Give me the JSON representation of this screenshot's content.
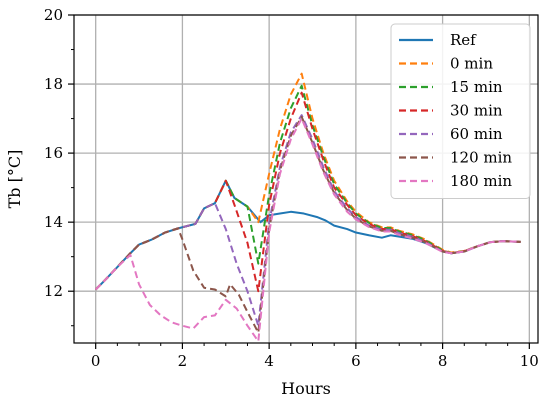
{
  "chart_data": {
    "type": "line",
    "xlabel": "Hours",
    "ylabel": "Tb [°C]",
    "xlim": [
      -0.5,
      10.2
    ],
    "ylim": [
      10.5,
      20
    ],
    "xticks": [
      0,
      2,
      4,
      6,
      8,
      10
    ],
    "yticks": [
      12,
      14,
      16,
      18,
      20
    ],
    "grid": true,
    "legend_position": "top-right",
    "series": [
      {
        "name": "Ref",
        "color": "#1f77b4",
        "dash": "solid",
        "points": [
          [
            0,
            12.05
          ],
          [
            0.2,
            12.3
          ],
          [
            0.5,
            12.7
          ],
          [
            0.8,
            13.1
          ],
          [
            1,
            13.35
          ],
          [
            1.3,
            13.5
          ],
          [
            1.6,
            13.7
          ],
          [
            1.9,
            13.82
          ],
          [
            2.3,
            13.95
          ],
          [
            2.5,
            14.4
          ],
          [
            2.75,
            14.55
          ],
          [
            3,
            15.2
          ],
          [
            3.2,
            14.7
          ],
          [
            3.5,
            14.45
          ],
          [
            3.8,
            14.0
          ],
          [
            4.0,
            14.2
          ],
          [
            4.25,
            14.25
          ],
          [
            4.5,
            14.3
          ],
          [
            4.8,
            14.25
          ],
          [
            5.1,
            14.15
          ],
          [
            5.3,
            14.05
          ],
          [
            5.5,
            13.9
          ],
          [
            5.8,
            13.8
          ],
          [
            6.0,
            13.7
          ],
          [
            6.3,
            13.62
          ],
          [
            6.6,
            13.55
          ],
          [
            6.8,
            13.62
          ],
          [
            7.0,
            13.58
          ],
          [
            7.3,
            13.52
          ],
          [
            7.6,
            13.4
          ],
          [
            8.0,
            13.15
          ],
          [
            8.2,
            13.1
          ],
          [
            8.5,
            13.15
          ],
          [
            8.8,
            13.3
          ],
          [
            9.1,
            13.42
          ],
          [
            9.4,
            13.45
          ],
          [
            9.8,
            13.43
          ]
        ]
      },
      {
        "name": "0 min",
        "color": "#ff7f0e",
        "dash": "dashed",
        "points": [
          [
            0,
            12.05
          ],
          [
            0.2,
            12.3
          ],
          [
            0.5,
            12.7
          ],
          [
            0.8,
            13.1
          ],
          [
            1,
            13.35
          ],
          [
            1.3,
            13.5
          ],
          [
            1.6,
            13.7
          ],
          [
            1.9,
            13.82
          ],
          [
            2.3,
            13.95
          ],
          [
            2.5,
            14.4
          ],
          [
            2.75,
            14.55
          ],
          [
            3,
            15.2
          ],
          [
            3.2,
            14.7
          ],
          [
            3.5,
            14.45
          ],
          [
            3.75,
            14.0
          ],
          [
            4.0,
            15.4
          ],
          [
            4.25,
            16.7
          ],
          [
            4.5,
            17.7
          ],
          [
            4.75,
            18.3
          ],
          [
            5.0,
            17.0
          ],
          [
            5.25,
            16.0
          ],
          [
            5.5,
            15.2
          ],
          [
            5.8,
            14.6
          ],
          [
            6.0,
            14.3
          ],
          [
            6.3,
            14.0
          ],
          [
            6.6,
            13.85
          ],
          [
            6.8,
            13.85
          ],
          [
            7.0,
            13.75
          ],
          [
            7.3,
            13.65
          ],
          [
            7.6,
            13.5
          ],
          [
            8.0,
            13.2
          ],
          [
            8.2,
            13.12
          ],
          [
            8.5,
            13.17
          ],
          [
            8.8,
            13.3
          ],
          [
            9.1,
            13.42
          ],
          [
            9.4,
            13.45
          ],
          [
            9.8,
            13.43
          ]
        ]
      },
      {
        "name": "15 min",
        "color": "#2ca02c",
        "dash": "dashed",
        "points": [
          [
            0,
            12.05
          ],
          [
            0.2,
            12.3
          ],
          [
            0.5,
            12.7
          ],
          [
            0.8,
            13.1
          ],
          [
            1,
            13.35
          ],
          [
            1.3,
            13.5
          ],
          [
            1.6,
            13.7
          ],
          [
            1.9,
            13.82
          ],
          [
            2.3,
            13.95
          ],
          [
            2.5,
            14.4
          ],
          [
            2.75,
            14.55
          ],
          [
            3,
            15.2
          ],
          [
            3.2,
            14.7
          ],
          [
            3.5,
            14.45
          ],
          [
            3.75,
            12.8
          ],
          [
            4.0,
            14.8
          ],
          [
            4.25,
            16.3
          ],
          [
            4.5,
            17.3
          ],
          [
            4.75,
            17.95
          ],
          [
            5.0,
            16.8
          ],
          [
            5.25,
            15.9
          ],
          [
            5.5,
            15.1
          ],
          [
            5.8,
            14.55
          ],
          [
            6.0,
            14.25
          ],
          [
            6.3,
            13.98
          ],
          [
            6.6,
            13.83
          ],
          [
            6.8,
            13.83
          ],
          [
            7.0,
            13.73
          ],
          [
            7.3,
            13.63
          ],
          [
            7.6,
            13.48
          ],
          [
            8.0,
            13.18
          ],
          [
            8.2,
            13.1
          ],
          [
            8.5,
            13.16
          ],
          [
            8.8,
            13.3
          ],
          [
            9.1,
            13.42
          ],
          [
            9.4,
            13.45
          ],
          [
            9.8,
            13.43
          ]
        ]
      },
      {
        "name": "30 min",
        "color": "#d62728",
        "dash": "dashed",
        "points": [
          [
            0,
            12.05
          ],
          [
            0.2,
            12.3
          ],
          [
            0.5,
            12.7
          ],
          [
            0.8,
            13.1
          ],
          [
            1,
            13.35
          ],
          [
            1.3,
            13.5
          ],
          [
            1.6,
            13.7
          ],
          [
            1.9,
            13.82
          ],
          [
            2.3,
            13.95
          ],
          [
            2.5,
            14.4
          ],
          [
            2.75,
            14.55
          ],
          [
            3,
            15.2
          ],
          [
            3.2,
            14.5
          ],
          [
            3.5,
            13.4
          ],
          [
            3.75,
            12.0
          ],
          [
            4.0,
            14.5
          ],
          [
            4.25,
            16.0
          ],
          [
            4.5,
            17.0
          ],
          [
            4.75,
            17.75
          ],
          [
            5.0,
            16.7
          ],
          [
            5.25,
            15.8
          ],
          [
            5.5,
            15.0
          ],
          [
            5.8,
            14.5
          ],
          [
            6.0,
            14.2
          ],
          [
            6.3,
            13.95
          ],
          [
            6.6,
            13.8
          ],
          [
            6.8,
            13.8
          ],
          [
            7.0,
            13.7
          ],
          [
            7.3,
            13.6
          ],
          [
            7.6,
            13.45
          ],
          [
            8.0,
            13.17
          ],
          [
            8.2,
            13.1
          ],
          [
            8.5,
            13.16
          ],
          [
            8.8,
            13.3
          ],
          [
            9.1,
            13.42
          ],
          [
            9.4,
            13.45
          ],
          [
            9.8,
            13.43
          ]
        ]
      },
      {
        "name": "60 min",
        "color": "#9467bd",
        "dash": "dashed",
        "points": [
          [
            0,
            12.05
          ],
          [
            0.2,
            12.3
          ],
          [
            0.5,
            12.7
          ],
          [
            0.8,
            13.1
          ],
          [
            1,
            13.35
          ],
          [
            1.3,
            13.5
          ],
          [
            1.6,
            13.7
          ],
          [
            1.9,
            13.82
          ],
          [
            2.3,
            13.95
          ],
          [
            2.5,
            14.4
          ],
          [
            2.75,
            14.55
          ],
          [
            3.0,
            13.8
          ],
          [
            3.25,
            12.8
          ],
          [
            3.5,
            12.0
          ],
          [
            3.75,
            11.0
          ],
          [
            4.0,
            14.0
          ],
          [
            4.25,
            15.6
          ],
          [
            4.5,
            16.6
          ],
          [
            4.75,
            17.1
          ],
          [
            5.0,
            16.4
          ],
          [
            5.25,
            15.6
          ],
          [
            5.5,
            14.9
          ],
          [
            5.8,
            14.4
          ],
          [
            6.0,
            14.15
          ],
          [
            6.3,
            13.9
          ],
          [
            6.6,
            13.78
          ],
          [
            6.8,
            13.78
          ],
          [
            7.0,
            13.68
          ],
          [
            7.3,
            13.58
          ],
          [
            7.6,
            13.43
          ],
          [
            8.0,
            13.15
          ],
          [
            8.2,
            13.1
          ],
          [
            8.5,
            13.15
          ],
          [
            8.8,
            13.3
          ],
          [
            9.1,
            13.42
          ],
          [
            9.4,
            13.45
          ],
          [
            9.8,
            13.43
          ]
        ]
      },
      {
        "name": "120 min",
        "color": "#8c564b",
        "dash": "dashed",
        "points": [
          [
            0,
            12.05
          ],
          [
            0.2,
            12.3
          ],
          [
            0.5,
            12.7
          ],
          [
            0.8,
            13.1
          ],
          [
            1,
            13.35
          ],
          [
            1.3,
            13.5
          ],
          [
            1.6,
            13.7
          ],
          [
            1.9,
            13.82
          ],
          [
            2.0,
            13.5
          ],
          [
            2.25,
            12.6
          ],
          [
            2.5,
            12.1
          ],
          [
            2.75,
            12.05
          ],
          [
            3.0,
            11.85
          ],
          [
            3.1,
            12.2
          ],
          [
            3.3,
            11.9
          ],
          [
            3.5,
            11.4
          ],
          [
            3.75,
            10.8
          ],
          [
            4.0,
            13.8
          ],
          [
            4.25,
            15.5
          ],
          [
            4.5,
            16.5
          ],
          [
            4.75,
            17.05
          ],
          [
            5.0,
            16.3
          ],
          [
            5.25,
            15.5
          ],
          [
            5.5,
            14.85
          ],
          [
            5.8,
            14.35
          ],
          [
            6.0,
            14.1
          ],
          [
            6.3,
            13.88
          ],
          [
            6.6,
            13.75
          ],
          [
            6.8,
            13.75
          ],
          [
            7.0,
            13.65
          ],
          [
            7.3,
            13.55
          ],
          [
            7.6,
            13.42
          ],
          [
            8.0,
            13.15
          ],
          [
            8.2,
            13.1
          ],
          [
            8.5,
            13.15
          ],
          [
            8.8,
            13.3
          ],
          [
            9.1,
            13.42
          ],
          [
            9.4,
            13.45
          ],
          [
            9.8,
            13.43
          ]
        ]
      },
      {
        "name": "180 min",
        "color": "#e377c2",
        "dash": "dashed",
        "points": [
          [
            0,
            12.05
          ],
          [
            0.2,
            12.3
          ],
          [
            0.5,
            12.7
          ],
          [
            0.8,
            13.05
          ],
          [
            1,
            12.2
          ],
          [
            1.25,
            11.6
          ],
          [
            1.5,
            11.3
          ],
          [
            1.75,
            11.1
          ],
          [
            2.0,
            11.0
          ],
          [
            2.25,
            10.92
          ],
          [
            2.5,
            11.25
          ],
          [
            2.75,
            11.3
          ],
          [
            3.0,
            11.75
          ],
          [
            3.25,
            11.5
          ],
          [
            3.5,
            11.0
          ],
          [
            3.75,
            10.55
          ],
          [
            4.0,
            13.7
          ],
          [
            4.25,
            15.4
          ],
          [
            4.5,
            16.4
          ],
          [
            4.75,
            17.0
          ],
          [
            5.0,
            16.25
          ],
          [
            5.25,
            15.45
          ],
          [
            5.5,
            14.8
          ],
          [
            5.8,
            14.3
          ],
          [
            6.0,
            14.08
          ],
          [
            6.3,
            13.86
          ],
          [
            6.6,
            13.73
          ],
          [
            6.8,
            13.73
          ],
          [
            7.0,
            13.63
          ],
          [
            7.3,
            13.53
          ],
          [
            7.6,
            13.4
          ],
          [
            8.0,
            13.14
          ],
          [
            8.2,
            13.1
          ],
          [
            8.5,
            13.15
          ],
          [
            8.8,
            13.3
          ],
          [
            9.1,
            13.42
          ],
          [
            9.4,
            13.45
          ],
          [
            9.8,
            13.43
          ]
        ]
      }
    ]
  }
}
